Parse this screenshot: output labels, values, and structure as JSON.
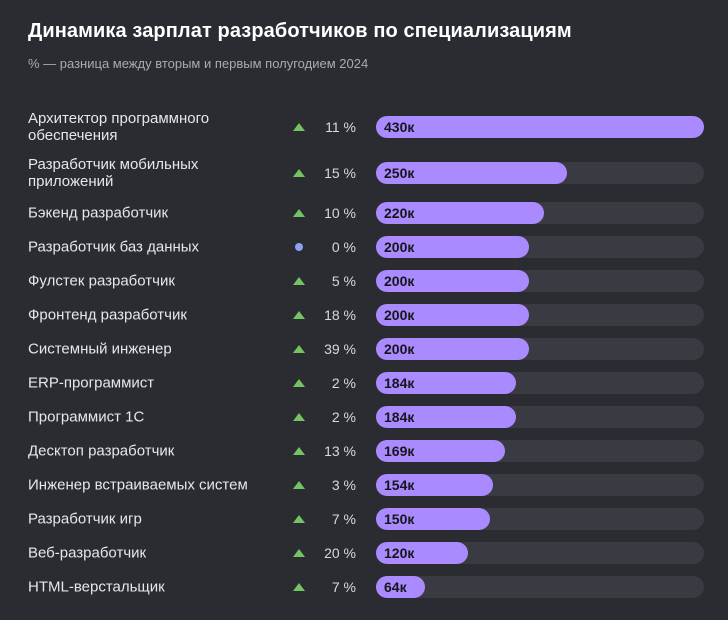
{
  "chart_data": {
    "type": "bar",
    "orientation": "horizontal",
    "title": "Динамика зарплат разработчиков по специализациям",
    "subtitle": "% — разница между вторым и первым полугодием 2024",
    "xlim": [
      0,
      430
    ],
    "grid": false,
    "bar_color": "#a98bff",
    "track_color": "#3a3b42",
    "up_color": "#74c464",
    "flat_color": "#8ea0f0",
    "categories": [
      "Архитектор программного обеспечения",
      "Разработчик мобильных приложений",
      "Бэкенд разработчик",
      "Разработчик баз данных",
      "Фулстек разработчик",
      "Фронтенд разработчик",
      "Системный инженер",
      "ERP-программист",
      "Программист 1С",
      "Десктоп разработчик",
      "Инженер встраиваемых систем",
      "Разработчик игр",
      "Веб-разработчик",
      "HTML-верстальщик"
    ],
    "category_lines": [
      [
        "Архитектор программного",
        "обеспечения"
      ],
      [
        "Разработчик мобильных",
        "приложений"
      ],
      [
        "Бэкенд разработчик"
      ],
      [
        "Разработчик баз данных"
      ],
      [
        "Фулстек разработчик"
      ],
      [
        "Фронтенд разработчик"
      ],
      [
        "Системный инженер"
      ],
      [
        "ERP-программист"
      ],
      [
        "Программист 1С"
      ],
      [
        "Десктоп разработчик"
      ],
      [
        "Инженер встраиваемых систем"
      ],
      [
        "Разработчик игр"
      ],
      [
        "Веб-разработчик"
      ],
      [
        "HTML-верстальщик"
      ]
    ],
    "values": [
      430,
      250,
      220,
      200,
      200,
      200,
      200,
      184,
      184,
      169,
      154,
      150,
      120,
      64
    ],
    "value_labels": [
      "430к",
      "250к",
      "220к",
      "200к",
      "200к",
      "200к",
      "200к",
      "184к",
      "184к",
      "169к",
      "154к",
      "150к",
      "120к",
      "64к"
    ],
    "change_pct": [
      11,
      15,
      10,
      0,
      5,
      18,
      39,
      2,
      2,
      13,
      3,
      7,
      20,
      7
    ],
    "change_labels": [
      "11 %",
      "15 %",
      "10 %",
      "0 %",
      "5 %",
      "18 %",
      "39 %",
      "2 %",
      "2 %",
      "13 %",
      "3 %",
      "7 %",
      "20 %",
      "7 %"
    ],
    "change_direction": [
      "up",
      "up",
      "up",
      "flat",
      "up",
      "up",
      "up",
      "up",
      "up",
      "up",
      "up",
      "up",
      "up",
      "up"
    ]
  }
}
